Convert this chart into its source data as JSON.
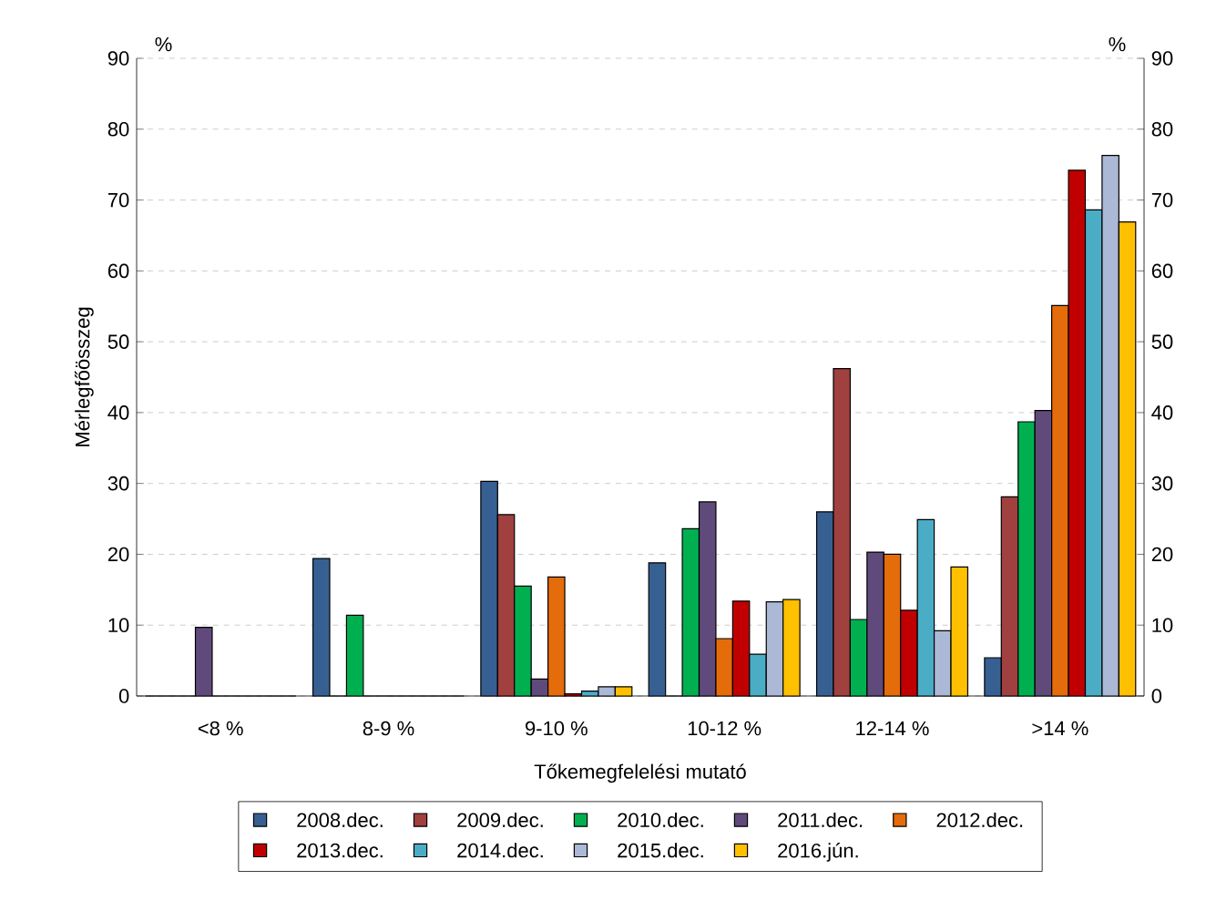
{
  "chart_data": {
    "type": "bar",
    "categories": [
      "<8 %",
      "8-9 %",
      "9-10 %",
      "10-12 %",
      "12-14 %",
      ">14 %"
    ],
    "xlabel": "Tőkemegfelelési mutató",
    "ylabel": "Mérlegfőösszeg",
    "annotations": [
      "%",
      "%"
    ],
    "ylim": [
      0,
      90
    ],
    "yticks": [
      0,
      10,
      20,
      30,
      40,
      50,
      60,
      70,
      80,
      90
    ],
    "y2lim": [
      0,
      90
    ],
    "y2ticks": [
      0,
      10,
      20,
      30,
      40,
      50,
      60,
      70,
      80,
      90
    ],
    "grid": "y",
    "legend": "bottom",
    "series": [
      {
        "name": "2008.dec.",
        "color": "#376092",
        "values": [
          0,
          19.4,
          30.3,
          18.8,
          26.0,
          5.4
        ]
      },
      {
        "name": "2009.dec.",
        "color": "#a0403f",
        "values": [
          0,
          0,
          25.6,
          0,
          46.2,
          28.1
        ]
      },
      {
        "name": "2010.dec.",
        "color": "#00b050",
        "values": [
          0,
          11.4,
          15.5,
          23.6,
          10.8,
          38.7
        ]
      },
      {
        "name": "2011.dec.",
        "color": "#604a7b",
        "values": [
          9.7,
          0,
          2.4,
          27.4,
          20.3,
          40.3
        ]
      },
      {
        "name": "2012.dec.",
        "color": "#e46c0a",
        "values": [
          0,
          0,
          16.8,
          8.1,
          20.0,
          55.1
        ]
      },
      {
        "name": "2013.dec.",
        "color": "#c00000",
        "values": [
          0,
          0,
          0.3,
          13.4,
          12.1,
          74.2
        ]
      },
      {
        "name": "2014.dec.",
        "color": "#4bacc6",
        "values": [
          0,
          0,
          0.7,
          5.9,
          24.9,
          68.6
        ]
      },
      {
        "name": "2015.dec.",
        "color": "#abb9d6",
        "values": [
          0,
          0,
          1.3,
          13.3,
          9.2,
          76.3
        ]
      },
      {
        "name": "2016.jún.",
        "color": "#ffc000",
        "values": [
          0,
          0,
          1.3,
          13.6,
          18.2,
          66.9
        ]
      }
    ]
  }
}
